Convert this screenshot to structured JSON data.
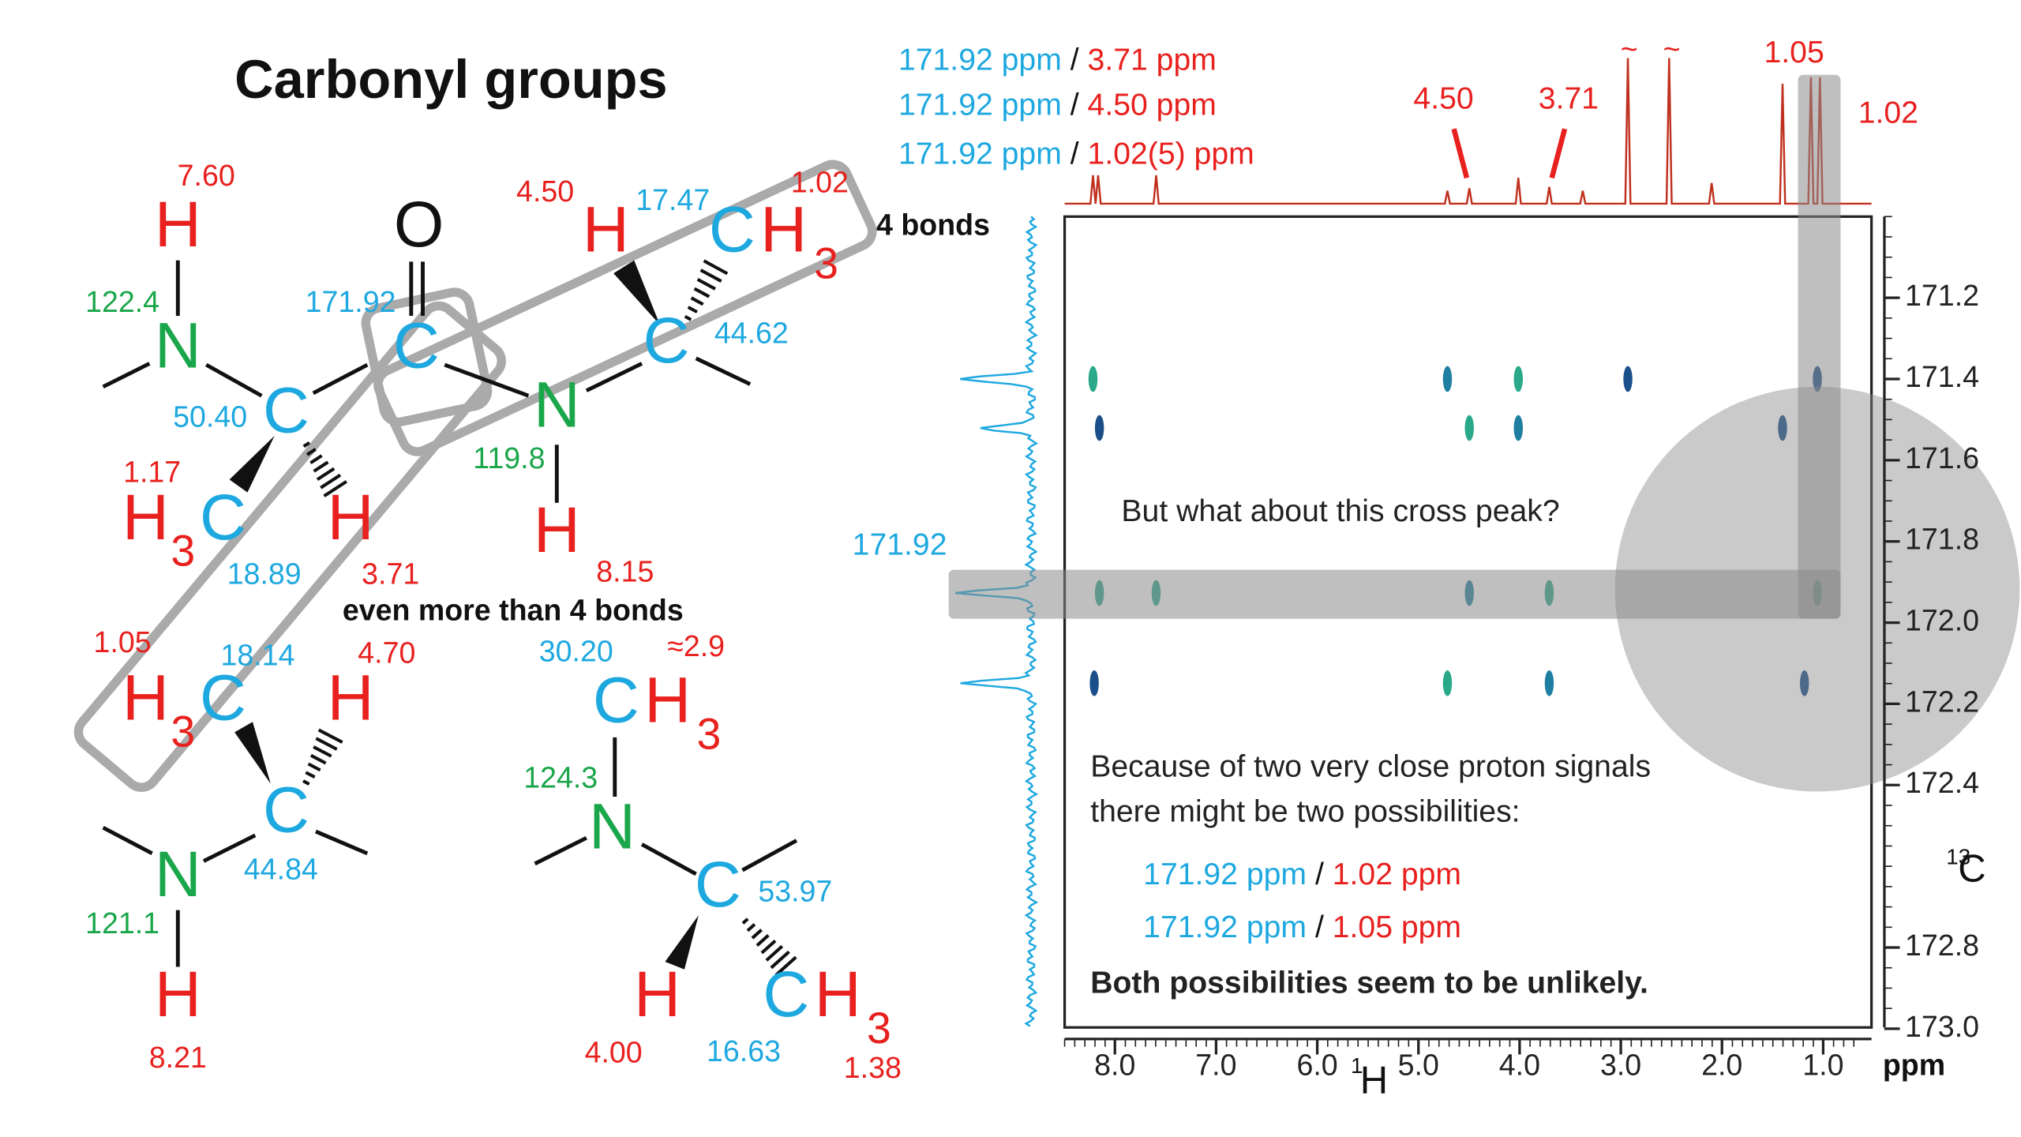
{
  "structure": {
    "title": "Carbonyl groups",
    "notes": [
      "4 bonds",
      "even more than 4 bonds"
    ],
    "atoms": [
      "H",
      "N",
      "C",
      "O",
      "C",
      "N",
      "H",
      "C",
      "H",
      "C",
      "H",
      "3",
      "H",
      "3",
      "C",
      "H",
      "H",
      "3",
      "C",
      "H",
      "C",
      "N",
      "H",
      "C",
      "H",
      "3",
      "N",
      "C",
      "H",
      "C",
      "H",
      "3"
    ],
    "shifts": [
      "7.60",
      "122.4",
      "50.40",
      "171.92",
      "4.50",
      "17.47",
      "1.02",
      "44.62",
      "119.8",
      "8.15",
      "1.17",
      "18.89",
      "3.71",
      "1.05",
      "18.14",
      "4.70",
      "44.84",
      "121.1",
      "8.21",
      "30.20",
      "≈2.9",
      "124.3",
      "53.97",
      "4.00",
      "16.63",
      "1.38"
    ]
  },
  "spectrum": {
    "pairs": [
      {
        "carbon": "171.92 ppm",
        "separator": "/",
        "proton": "3.71 ppm"
      },
      {
        "carbon": "171.92 ppm",
        "separator": "/",
        "proton": "4.50 ppm"
      },
      {
        "carbon": "171.92 ppm",
        "separator": "/",
        "proton": "1.02(5) ppm"
      }
    ],
    "proton_peak_labels": [
      "4.50",
      "3.71",
      "1.05",
      "1.02"
    ],
    "truncation_marks": [
      "~",
      "~"
    ],
    "carbon_label": "171.92",
    "question": "But what about this cross peak?",
    "explanation": [
      "Because of two very close proton signals",
      "there might be two possibilities:"
    ],
    "possibilities": [
      {
        "carbon": "171.92 ppm",
        "separator": "/",
        "proton": "1.02 ppm"
      },
      {
        "carbon": "171.92 ppm",
        "separator": "/",
        "proton": "1.05 ppm"
      }
    ],
    "conclusion": "Both possibilities seem to be unlikely.",
    "x_axis": {
      "ticks": [
        "8.0",
        "7.0",
        "6.0",
        "5.0",
        "4.0",
        "3.0",
        "2.0",
        "1.0"
      ],
      "nucleus_mass": "1",
      "nucleus": "H",
      "unit": "ppm"
    },
    "y_axis": {
      "ticks": [
        "171.2",
        "171.4",
        "171.6",
        "171.8",
        "172.0",
        "172.2",
        "172.4",
        "172.8",
        "173.0"
      ],
      "nucleus_mass": "13",
      "nucleus": "C"
    }
  }
}
